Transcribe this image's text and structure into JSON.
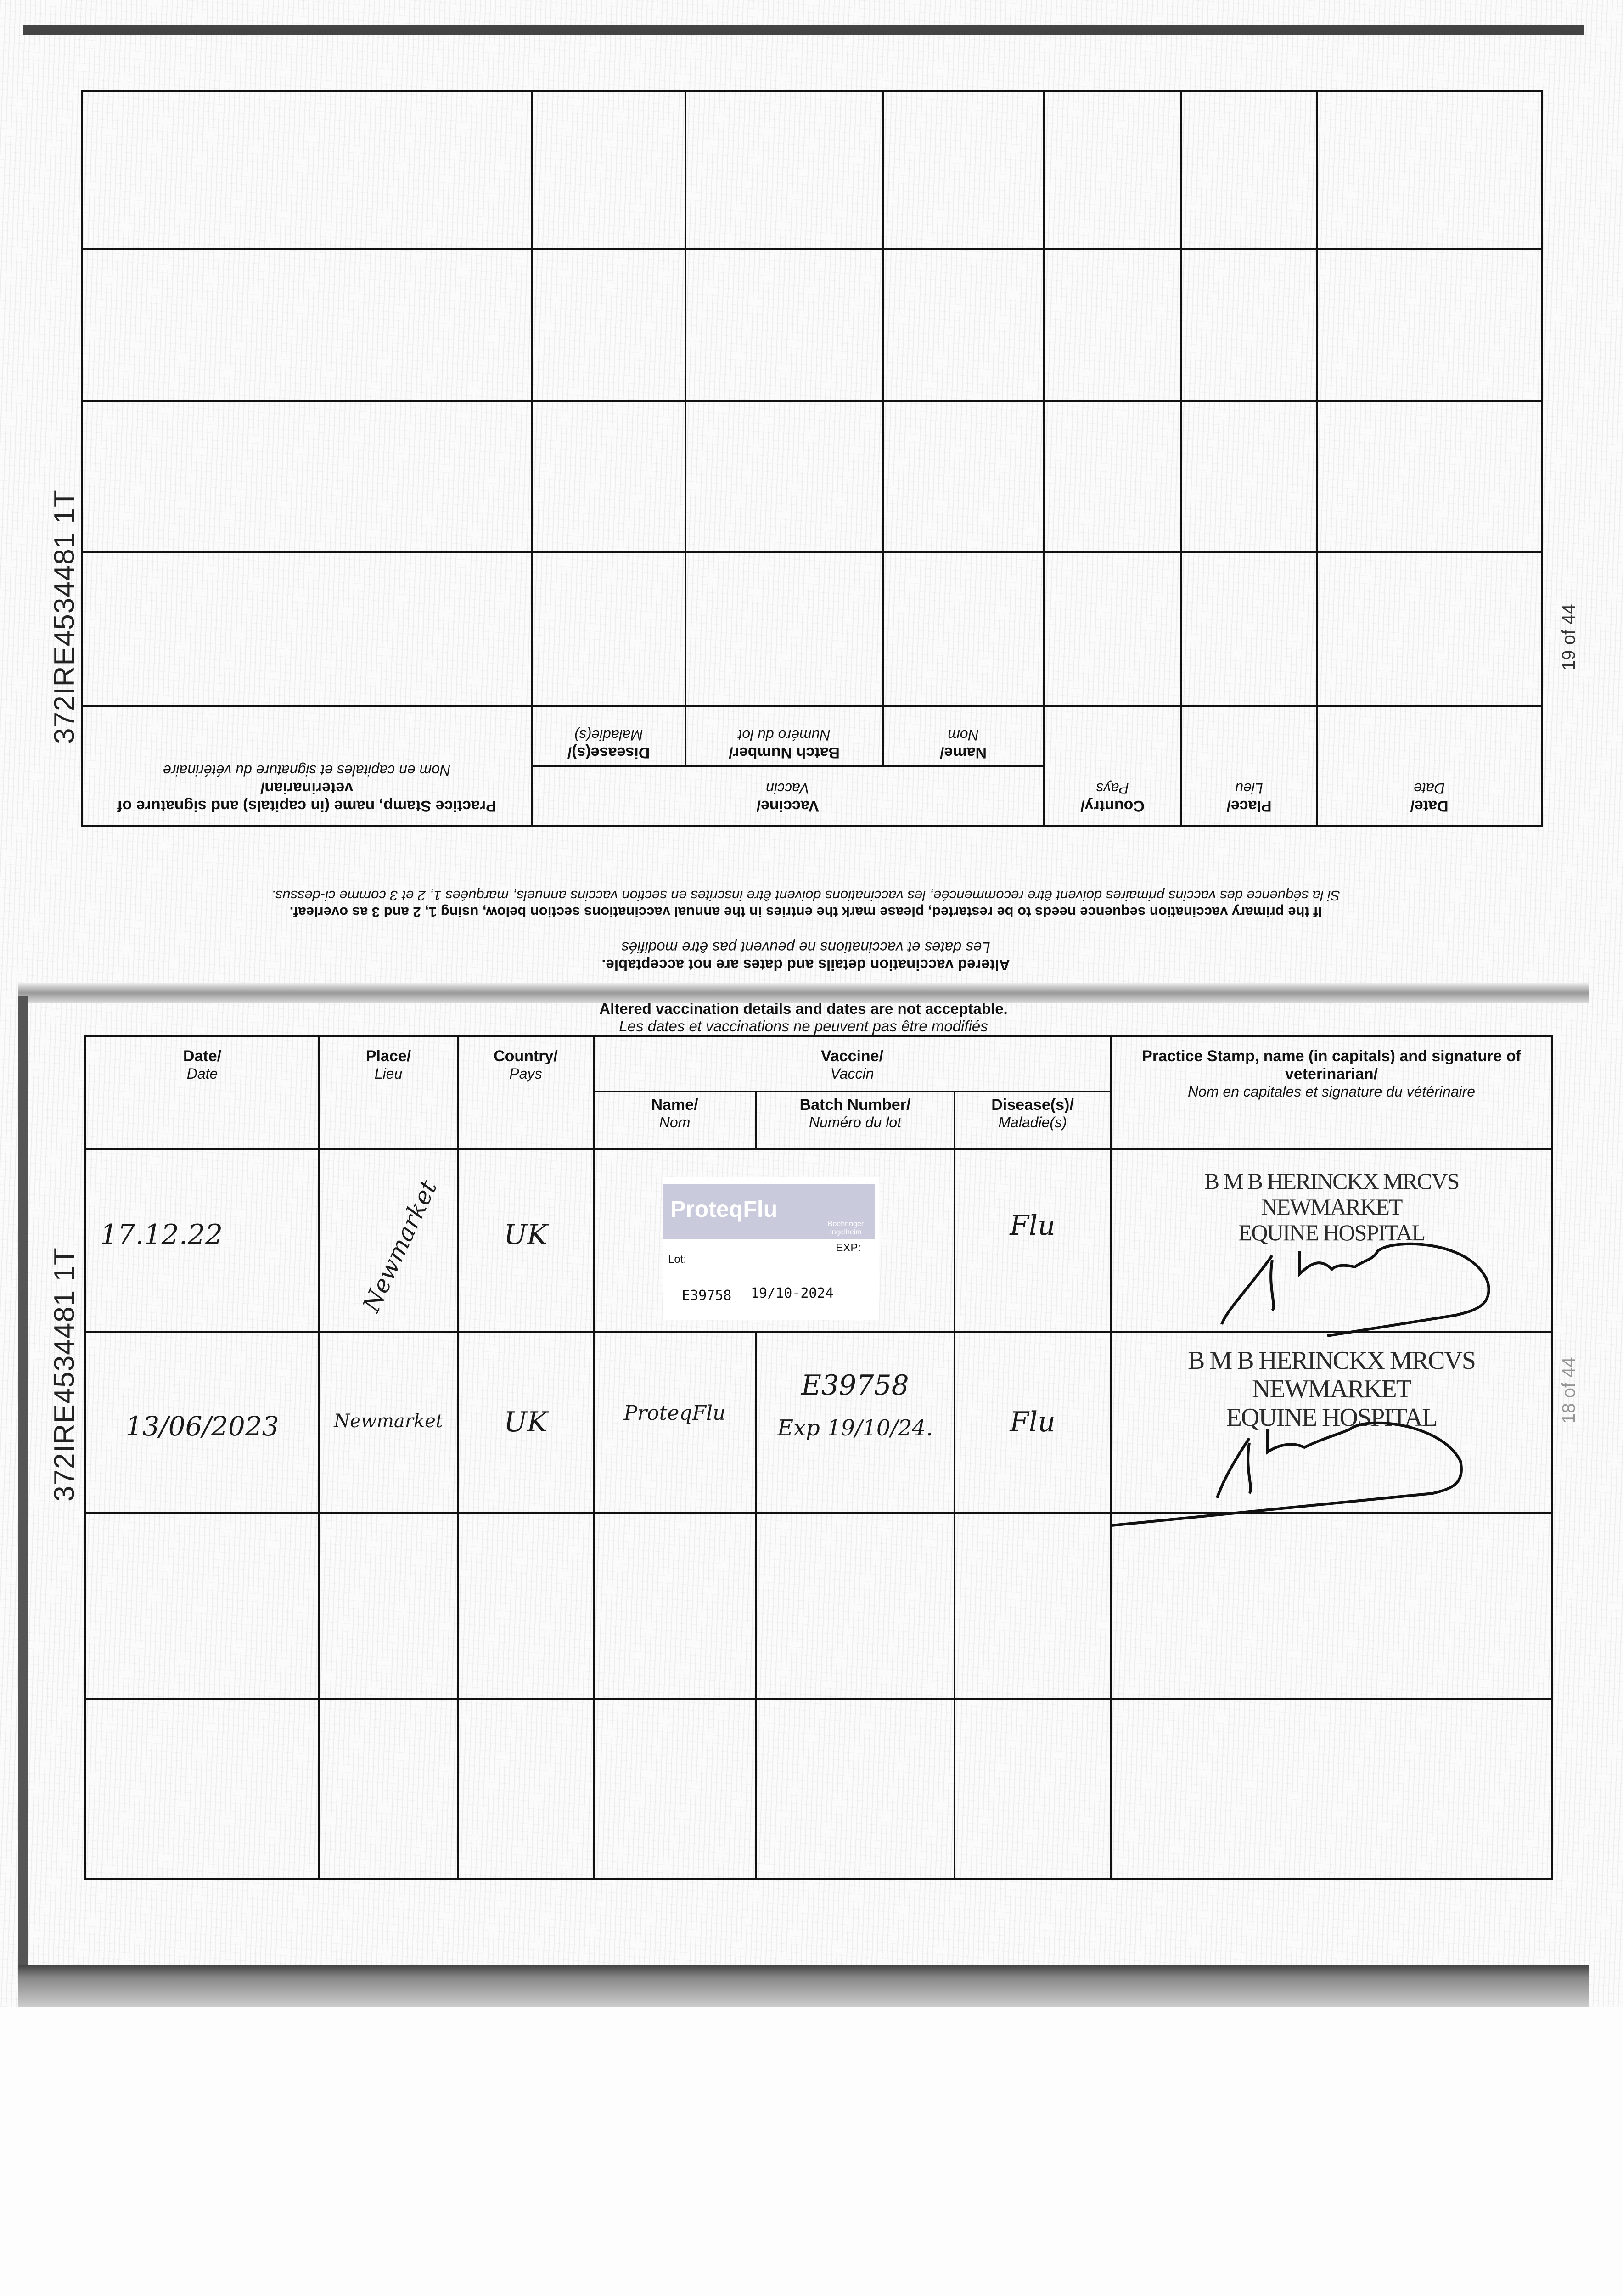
{
  "document_id": "372IRE4534481 1T",
  "upper_page": {
    "page_number": "19 of 44",
    "notice_en": "Altered vaccination details and dates are not acceptable.",
    "notice_fr": "Les dates et vaccinations ne peuvent pas être modifiés",
    "restart_en": "If the primary vaccination sequence needs to be restarted, please mark the entries in the annual vaccinations section below, using 1, 2 and 3 as overleaf.",
    "restart_fr": "Si la séquence des vaccins primaires doivent être recommencée, les vaccinations doivent être inscrites en section vaccins annuels, marquées 1, 2 et 3 comme ci-dessus."
  },
  "lower_page": {
    "page_number_partial": "18 of 44",
    "notice_en": "Altered vaccination details and dates are not acceptable.",
    "notice_fr": "Les dates et vaccinations ne peuvent pas être modifiés"
  },
  "headers": {
    "date_en": "Date/",
    "date_fr": "Date",
    "place_en": "Place/",
    "place_fr": "Lieu",
    "country_en": "Country/",
    "country_fr": "Pays",
    "vaccine_en": "Vaccine/",
    "vaccine_fr": "Vaccin",
    "name_en": "Name/",
    "name_fr": "Nom",
    "batch_en": "Batch Number/",
    "batch_fr": "Numéro du lot",
    "disease_en": "Disease(s)/",
    "disease_fr": "Maladie(s)",
    "practice_en": "Practice Stamp, name (in capitals) and signature of veterinarian/",
    "practice_fr": "Nom en capitales et signature du vétérinaire",
    "practice_en_upper": "Practice Stamp, name (in capitals) and signature of veterinarian/",
    "practice_fr_upper": "Nom en capitales et signature du vétérinaire"
  },
  "entries": [
    {
      "date": "17.12.22",
      "place": "Newmarket",
      "country": "UK",
      "vaccine_label": {
        "brand": "ProteqFlu",
        "maker": "Boehringer Ingelheim",
        "lot_label": "Lot:",
        "exp_label": "EXP:",
        "lot": "E39758",
        "exp": "19/10-2024"
      },
      "disease": "Flu",
      "stamp": [
        "B M B HERINCKX MRCVS",
        "NEWMARKET",
        "EQUINE HOSPITAL"
      ]
    },
    {
      "date": "13/06/2023",
      "place": "Newmarket",
      "country": "UK",
      "name": "ProteqFlu",
      "batch": "E39758",
      "batch_exp": "Exp 19/10/24.",
      "disease": "Flu",
      "stamp": [
        "B M B HERINCKX MRCVS",
        "NEWMARKET",
        "EQUINE HOSPITAL"
      ]
    }
  ]
}
